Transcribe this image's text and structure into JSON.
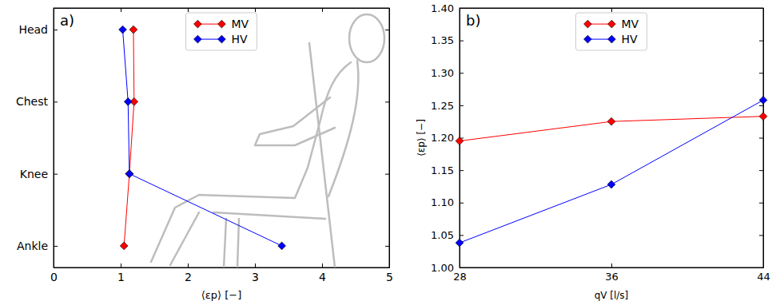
{
  "chart_data": [
    {
      "type": "line",
      "panel_label": "a)",
      "orientation": "horizontal",
      "x_label": "⟨εp⟩ [−]",
      "categories": [
        "Ankle",
        "Knee",
        "Chest",
        "Head"
      ],
      "xlim": [
        0,
        5
      ],
      "xticks": [
        0,
        1,
        2,
        3,
        4,
        5
      ],
      "legend": "upper center",
      "marker": "diamond",
      "series": [
        {
          "name": "MV",
          "color": "#ff0000",
          "values": [
            1.05,
            1.13,
            1.2,
            1.19
          ]
        },
        {
          "name": "HV",
          "color": "#0000ff",
          "values": [
            3.4,
            1.13,
            1.11,
            1.03
          ]
        }
      ]
    },
    {
      "type": "line",
      "panel_label": "b)",
      "x_label": "qV [l/s]",
      "y_label": "⟨εp⟩ [−]",
      "x": [
        28,
        36,
        44
      ],
      "xlim": [
        28,
        44
      ],
      "xticks": [
        28,
        36,
        44
      ],
      "ylim": [
        1,
        1.4
      ],
      "yticks": [
        {
          "value": 1,
          "label": "1.00"
        },
        {
          "value": 1.05,
          "label": "1.05"
        },
        {
          "value": 1.1,
          "label": "1.10"
        },
        {
          "value": 1.15,
          "label": "1.15"
        },
        {
          "value": 1.2,
          "label": "1.20"
        },
        {
          "value": 1.25,
          "label": "1.25"
        },
        {
          "value": 1.3,
          "label": "1.30"
        },
        {
          "value": 1.35,
          "label": "1.35"
        },
        {
          "value": 1.4,
          "label": "1.40"
        }
      ],
      "legend": "upper center",
      "marker": "diamond",
      "series": [
        {
          "name": "MV",
          "color": "#ff0000",
          "values": [
            1.195,
            1.225,
            1.233
          ]
        },
        {
          "name": "HV",
          "color": "#0000ff",
          "values": [
            1.038,
            1.128,
            1.258
          ]
        }
      ]
    }
  ]
}
